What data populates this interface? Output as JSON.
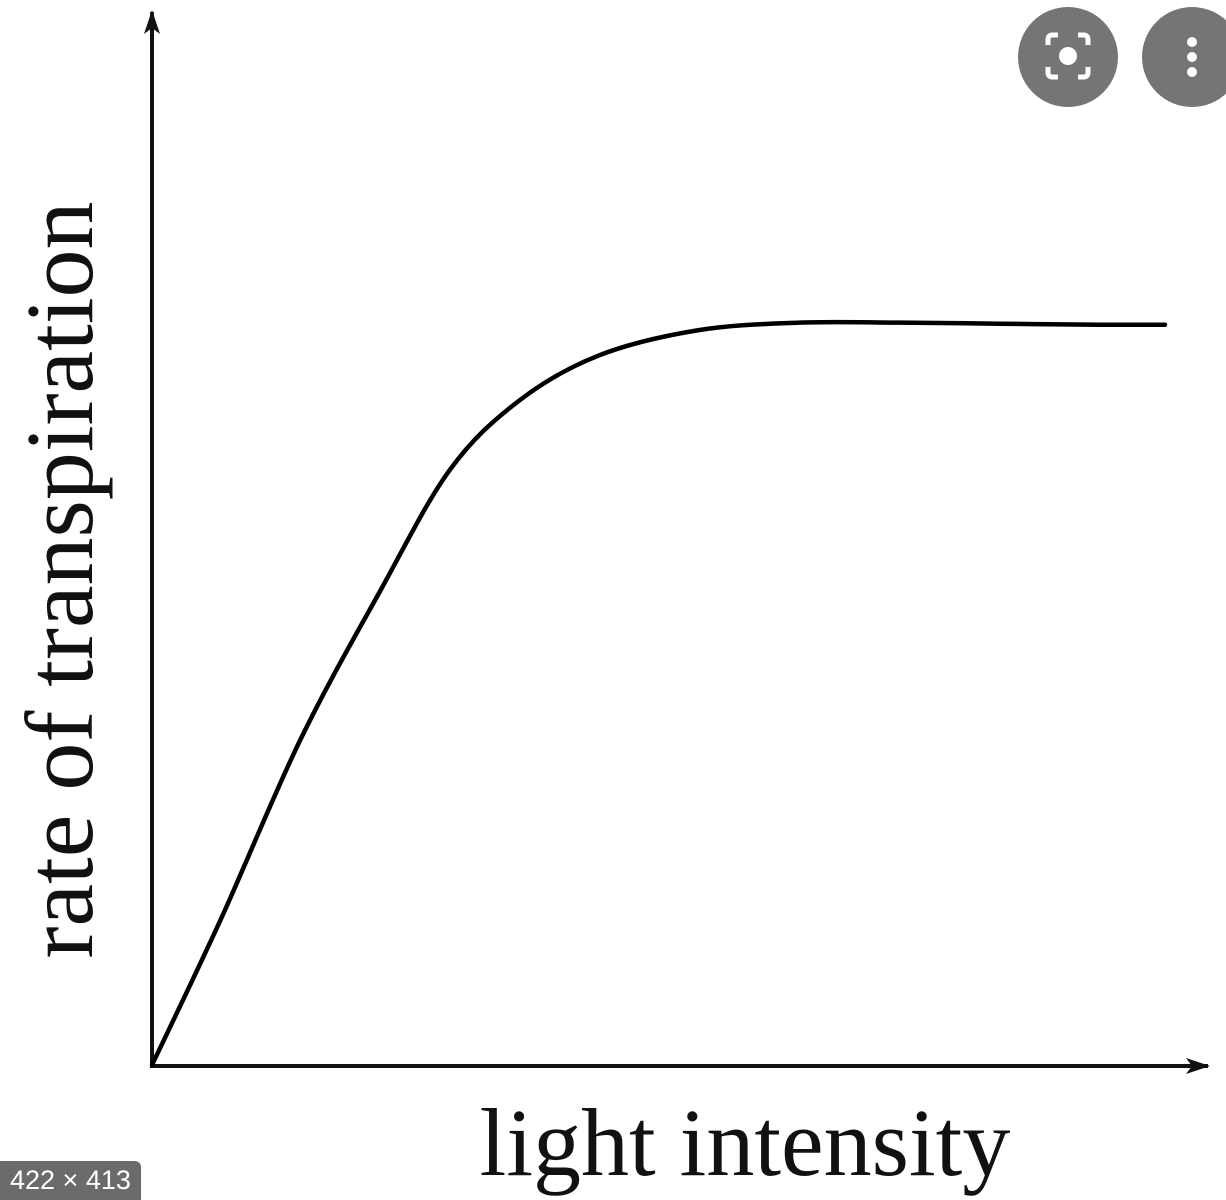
{
  "chart_data": {
    "type": "line",
    "x_label": "light intensity",
    "y_label": "rate of transpiration",
    "x": [
      0,
      6.5,
      14.1,
      21.7,
      28.3,
      34.9,
      42.5,
      52.0,
      61.5,
      71.0,
      80.5,
      90.0,
      96.2
    ],
    "values": [
      0,
      13.8,
      31.0,
      45.2,
      56.7,
      63.3,
      67.6,
      70.0,
      70.7,
      70.7,
      70.6,
      70.5,
      70.5
    ],
    "color": "#000000",
    "xlim": [
      0,
      100
    ],
    "ylim": [
      0,
      100
    ]
  },
  "overlay": {
    "size_badge": "422 × 413"
  }
}
